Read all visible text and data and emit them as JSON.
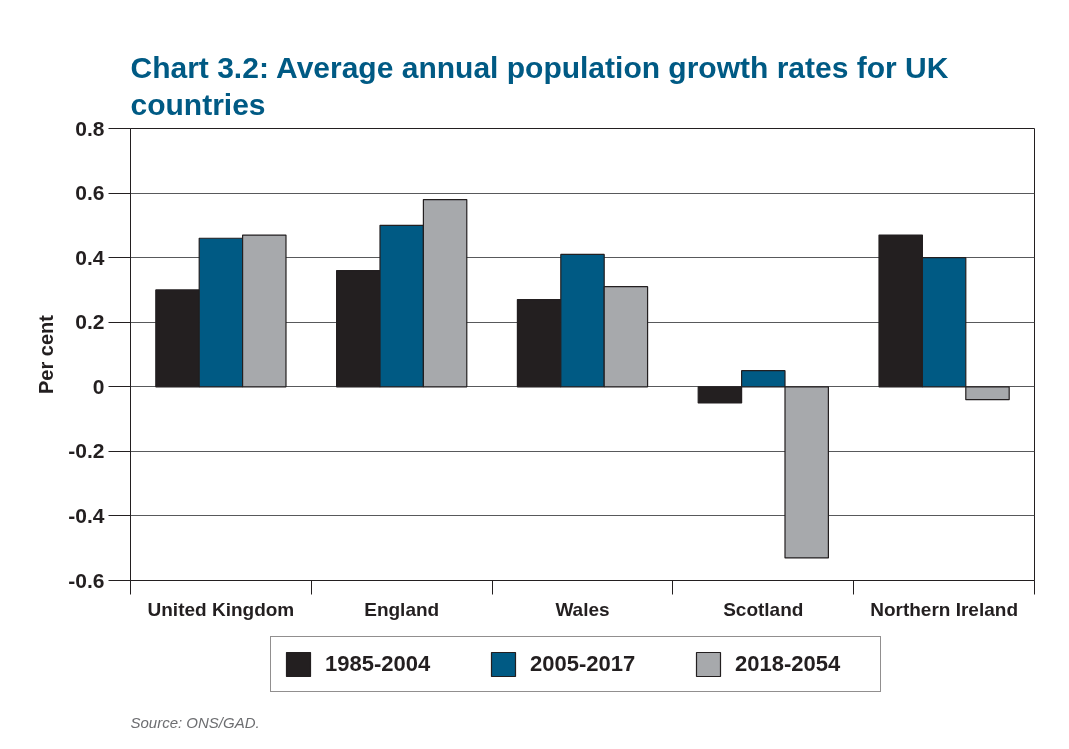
{
  "chart_data": {
    "type": "bar",
    "title": "Chart 3.2: Average annual population growth rates for UK countries",
    "ylabel": "Per cent",
    "categories": [
      "United Kingdom",
      "England",
      "Wales",
      "Scotland",
      "Northern Ireland"
    ],
    "series": [
      {
        "name": "1985-2004",
        "color": "#231f20",
        "values": [
          0.3,
          0.36,
          0.27,
          -0.05,
          0.47
        ]
      },
      {
        "name": "2005-2017",
        "color": "#005a84",
        "values": [
          0.46,
          0.5,
          0.41,
          0.05,
          0.4
        ]
      },
      {
        "name": "2018-2054",
        "color": "#a7a9ac",
        "values": [
          0.47,
          0.58,
          0.31,
          -0.53,
          -0.04
        ]
      }
    ],
    "ylim": [
      -0.6,
      0.8
    ],
    "yticks": [
      -0.6,
      -0.4,
      -0.2,
      0,
      0.2,
      0.4,
      0.6,
      0.8
    ],
    "grid": "y",
    "legend": "bottom",
    "annotations": [
      "Source: ONS/GAD."
    ]
  }
}
